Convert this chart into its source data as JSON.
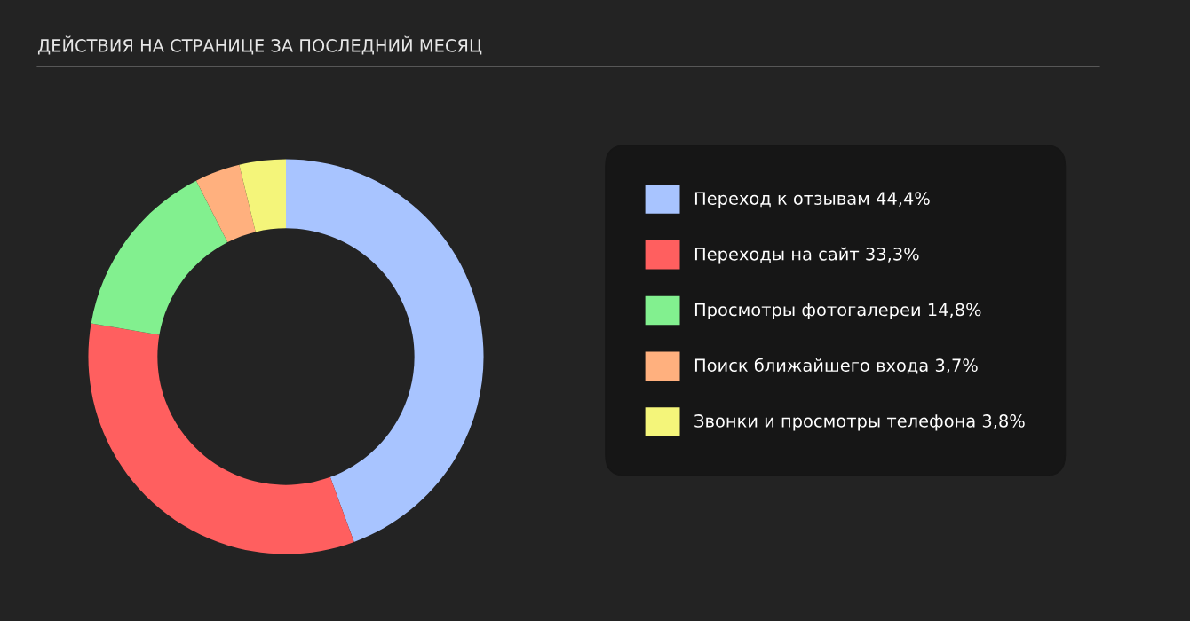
{
  "chart_data": {
    "type": "donut",
    "title": "ДЕЙСТВИЯ НА СТРАНИЦЕ ЗА ПОСЛЕДНИЙ МЕСЯЦ",
    "categories": [
      "Переход к отзывам",
      "Переходы на сайт",
      "Просмотры фотогалереи",
      "Поиск ближайшего входа",
      "Звонки и просмотры телефона"
    ],
    "values": [
      44.4,
      33.3,
      14.8,
      3.7,
      3.8
    ],
    "value_labels": [
      "44,4%",
      "33,3%",
      "14,8%",
      "3,7%",
      "3,8%"
    ],
    "colors": [
      "#a8c4ff",
      "#ff5f5f",
      "#82f08f",
      "#ffb07e",
      "#f4f57a"
    ],
    "legend": "right"
  }
}
